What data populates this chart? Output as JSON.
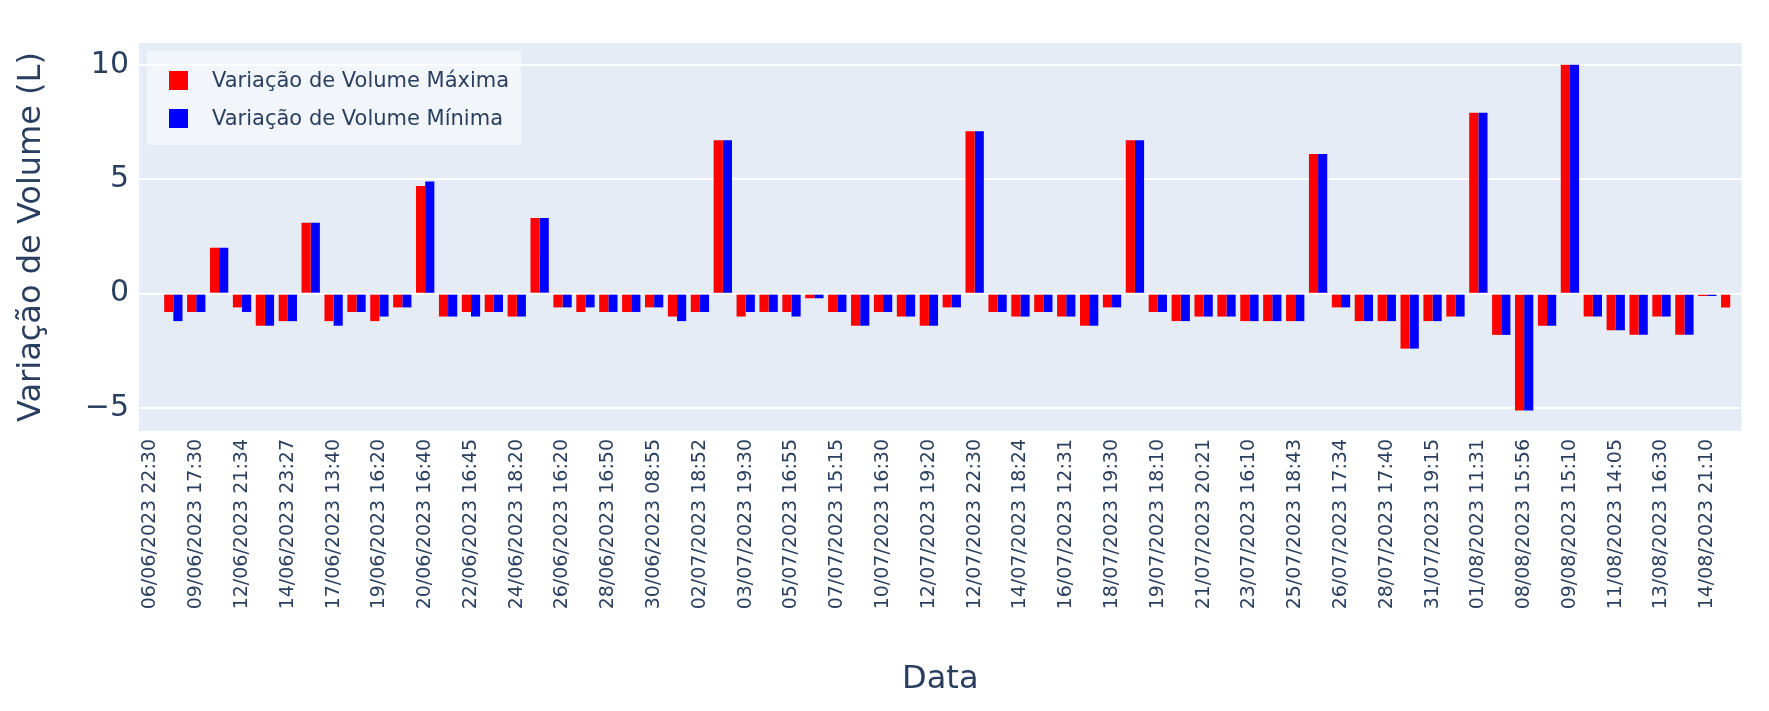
{
  "chart_data": {
    "type": "bar",
    "xlabel": "Data",
    "ylabel": "Variação de Volume (L)",
    "categories": [
      "06/06/2023 22:30",
      null,
      "09/06/2023 17:30",
      null,
      "12/06/2023 21:34",
      null,
      "14/06/2023 23:27",
      null,
      "17/06/2023 13:40",
      null,
      "19/06/2023 16:20",
      null,
      "20/06/2023 16:40",
      null,
      "22/06/2023 16:45",
      null,
      "24/06/2023 18:20",
      null,
      "26/06/2023 16:20",
      null,
      "28/06/2023 16:50",
      null,
      "30/06/2023 08:55",
      null,
      "02/07/2023 18:52",
      null,
      "03/07/2023 19:30",
      null,
      "05/07/2023 16:55",
      null,
      "07/07/2023 15:15",
      null,
      "10/07/2023 16:30",
      null,
      "12/07/2023 19:20",
      null,
      "12/07/2023 22:30",
      null,
      "14/07/2023 18:24",
      null,
      "16/07/2023 12:31",
      null,
      "18/07/2023 19:30",
      null,
      "19/07/2023 18:10",
      null,
      "21/07/2023 20:21",
      null,
      "23/07/2023 16:10",
      null,
      "25/07/2023 18:43",
      null,
      "26/07/2023 17:34",
      null,
      "28/07/2023 17:40",
      null,
      "31/07/2023 19:15",
      null,
      "01/08/2023 11:31",
      null,
      "08/08/2023 15:56",
      null,
      "09/08/2023 15:10",
      null,
      "11/08/2023 14:05",
      null,
      "13/08/2023 16:30",
      null,
      "14/08/2023 21:10",
      null
    ],
    "series": [
      {
        "name": "Variação de Volume Máxima",
        "color": "#ff0000",
        "values": [
          null,
          -0.8,
          -0.8,
          2.0,
          -0.6,
          -1.4,
          -1.2,
          3.1,
          -1.2,
          -0.8,
          -1.2,
          -0.6,
          4.7,
          -1.0,
          -0.8,
          -0.8,
          -1.0,
          3.3,
          -0.6,
          -0.8,
          -0.8,
          -0.8,
          -0.6,
          -1.0,
          -0.8,
          6.7,
          -1.0,
          -0.8,
          -0.8,
          -0.2,
          -0.8,
          -1.4,
          -0.8,
          -1.0,
          -1.4,
          -0.6,
          7.1,
          -0.8,
          -1.0,
          -0.8,
          -1.0,
          -1.4,
          -0.6,
          6.7,
          -0.8,
          -1.2,
          -1.0,
          -1.0,
          -1.2,
          -1.2,
          -1.2,
          6.1,
          -0.6,
          -1.2,
          -1.2,
          -2.4,
          -1.2,
          -1.0,
          7.9,
          -1.8,
          -5.1,
          -1.4,
          10.0,
          -1.0,
          -1.6,
          -1.8,
          -1.0,
          -1.8,
          -0.1,
          -0.6
        ]
      },
      {
        "name": "Variação de Volume Mínima",
        "color": "#0000ff",
        "values": [
          null,
          -1.2,
          -0.8,
          2.0,
          -0.8,
          -1.4,
          -1.2,
          3.1,
          -1.4,
          -0.8,
          -1.0,
          -0.6,
          4.9,
          -1.0,
          -1.0,
          -0.8,
          -1.0,
          3.3,
          -0.6,
          -0.6,
          -0.8,
          -0.8,
          -0.6,
          -1.2,
          -0.8,
          6.7,
          -0.8,
          -0.8,
          -1.0,
          -0.2,
          -0.8,
          -1.4,
          -0.8,
          -1.0,
          -1.4,
          -0.6,
          7.1,
          -0.8,
          -1.0,
          -0.8,
          -1.0,
          -1.4,
          -0.6,
          6.7,
          -0.8,
          -1.2,
          -1.0,
          -1.0,
          -1.2,
          -1.2,
          -1.2,
          6.1,
          -0.6,
          -1.2,
          -1.2,
          -2.4,
          -1.2,
          -1.0,
          7.9,
          -1.8,
          -5.1,
          -1.4,
          10.0,
          -1.0,
          -1.6,
          -1.8,
          -1.0,
          -1.8,
          -0.1,
          null
        ]
      }
    ],
    "ylim": [
      -6,
      10.95
    ],
    "yticks": [
      {
        "value": -5,
        "label": "−5"
      },
      0,
      5,
      10
    ],
    "grid": "y",
    "legend": "top left"
  }
}
